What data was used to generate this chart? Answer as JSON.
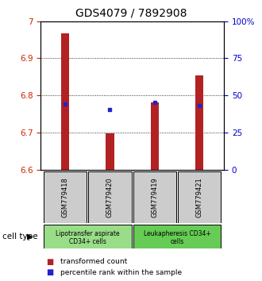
{
  "title": "GDS4079 / 7892908",
  "samples": [
    "GSM779418",
    "GSM779420",
    "GSM779419",
    "GSM779421"
  ],
  "bar_bottoms": [
    6.6,
    6.6,
    6.6,
    6.6
  ],
  "bar_tops": [
    6.966,
    6.698,
    6.782,
    6.855
  ],
  "blue_values": [
    6.778,
    6.762,
    6.782,
    6.773
  ],
  "ylim": [
    6.6,
    7.0
  ],
  "yticks_left": [
    6.6,
    6.7,
    6.8,
    6.9,
    7.0
  ],
  "ytick_labels_left": [
    "6.6",
    "6.7",
    "6.8",
    "6.9",
    "7"
  ],
  "yticks_right": [
    0,
    25,
    50,
    75,
    100
  ],
  "ytick_labels_right": [
    "0",
    "25",
    "50",
    "75",
    "100%"
  ],
  "bar_color": "#b22222",
  "blue_color": "#2222cc",
  "bar_width": 0.18,
  "group1_label_line1": "Lipotransfer aspirate",
  "group1_label_line2": "CD34+ cells",
  "group2_label_line1": "Leukapheresis CD34+",
  "group2_label_line2": "cells",
  "group1_color": "#99dd88",
  "group2_color": "#66cc55",
  "legend_label1": "transformed count",
  "legend_label2": "percentile rank within the sample",
  "cell_type_label": "cell type",
  "sample_box_color": "#cccccc",
  "left_color": "#cc2200",
  "right_color": "#0000cc"
}
